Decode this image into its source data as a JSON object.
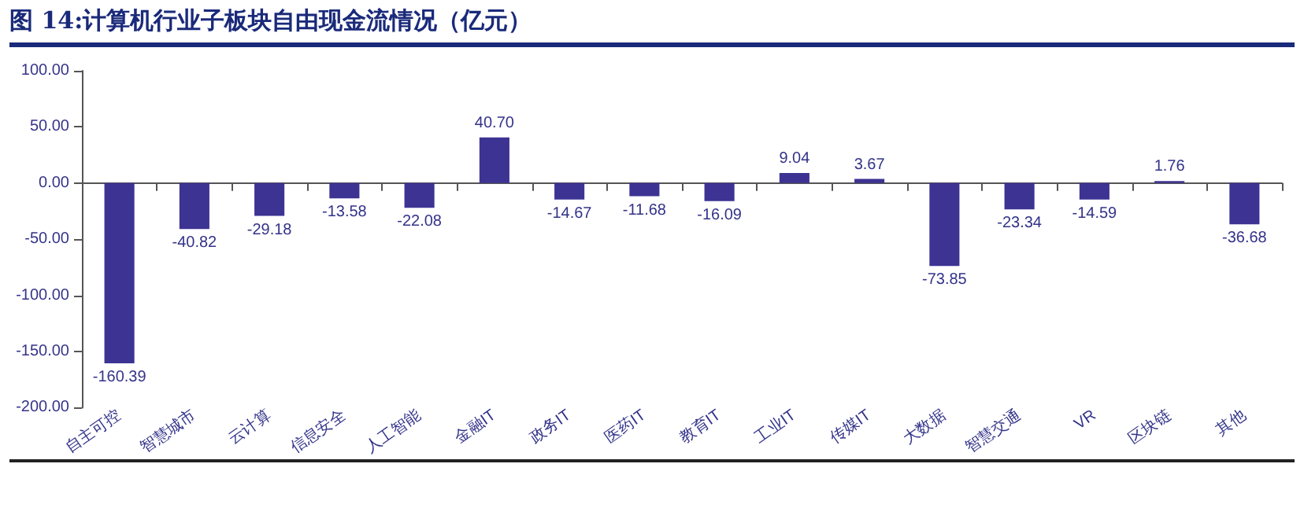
{
  "chart_data": {
    "type": "bar",
    "title": "图 14:计算机行业子板块自由现金流情况（亿元）",
    "categories": [
      "自主可控",
      "智慧城市",
      "云计算",
      "信息安全",
      "人工智能",
      "金融IT",
      "政务IT",
      "医药IT",
      "教育IT",
      "工业IT",
      "传媒IT",
      "大数据",
      "智慧交通",
      "VR",
      "区块链",
      "其他"
    ],
    "values": [
      -160.39,
      -40.82,
      -29.18,
      -13.58,
      -22.08,
      40.7,
      -14.67,
      -11.68,
      -16.09,
      9.04,
      3.67,
      -73.85,
      -23.34,
      -14.59,
      1.76,
      -36.68
    ],
    "value_labels": [
      "-160.39",
      "-40.82",
      "-29.18",
      "-13.58",
      "-22.08",
      "40.70",
      "-14.67",
      "-11.68",
      "-16.09",
      "9.04",
      "3.67",
      "-73.85",
      "-23.34",
      "-14.59",
      "1.76",
      "-36.68"
    ],
    "color": "#3d3393",
    "ylim": [
      -200,
      100
    ],
    "yticks": [
      {
        "value": -200,
        "label": "-200.00"
      },
      {
        "value": -150,
        "label": "-150.00"
      },
      {
        "value": -100,
        "label": "-100.00"
      },
      {
        "value": -50,
        "label": "-50.00"
      },
      {
        "value": 0,
        "label": "0.00"
      },
      {
        "value": 50,
        "label": "50.00"
      },
      {
        "value": 100,
        "label": "100.00"
      }
    ],
    "data_labels": false
  }
}
